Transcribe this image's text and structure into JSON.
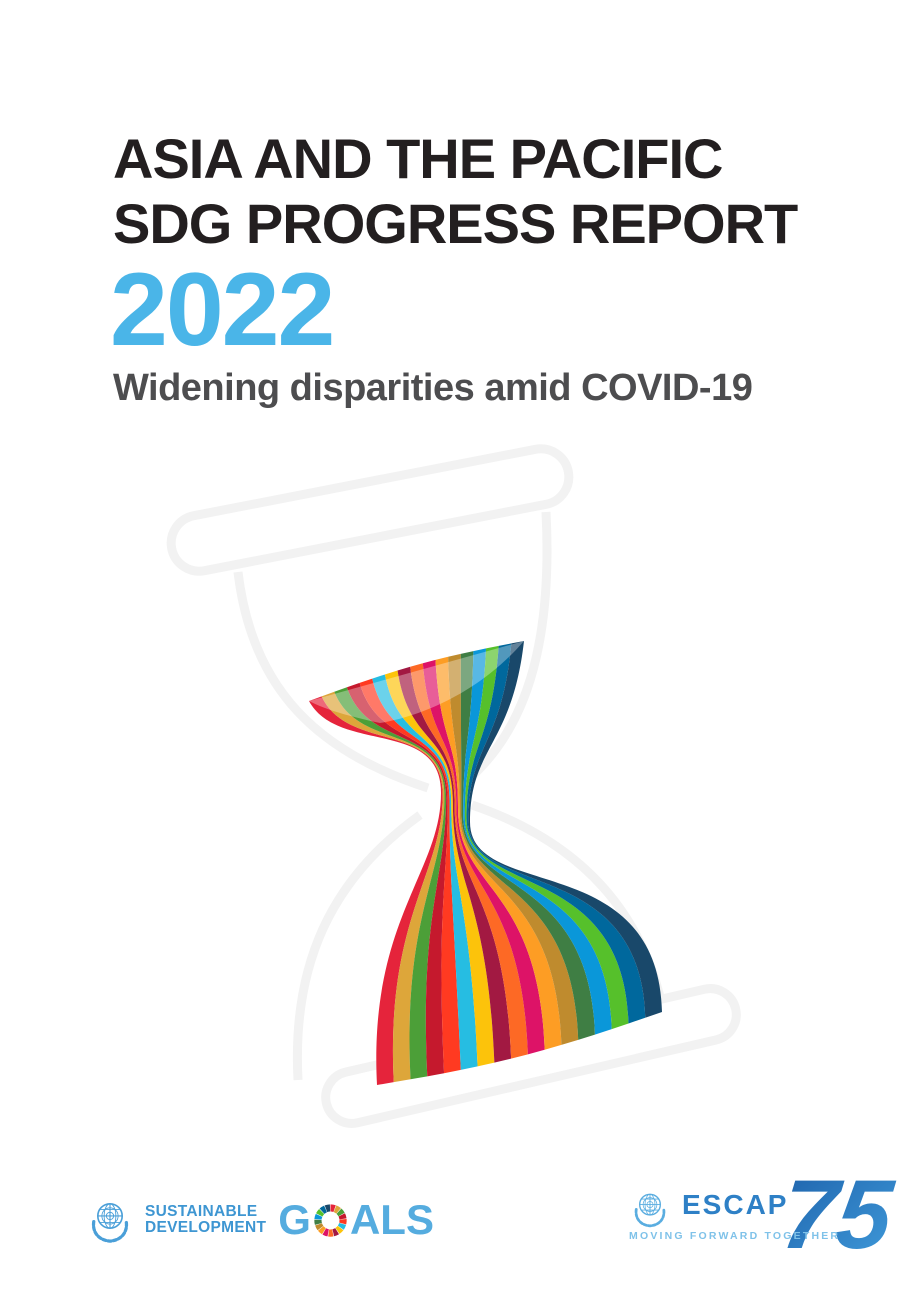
{
  "cover": {
    "title_line1": "ASIA AND THE PACIFIC",
    "title_line2": "SDG PROGRESS REPORT",
    "year": "2022",
    "subtitle": "Widening disparities amid COVID-19",
    "colors": {
      "title": "#231F20",
      "year": "#4AB5E8",
      "subtitle": "#4D4D4F"
    }
  },
  "artwork": {
    "description": "Multicoloured SDG ribbon vortex twisting inside a faint hourglass outline",
    "outline_color": "#F2F2F2",
    "stripe_colors": [
      "#E5243B",
      "#DDA63A",
      "#4C9F38",
      "#C5192D",
      "#FF3A21",
      "#26BDE2",
      "#FCC30B",
      "#A21942",
      "#FD6925",
      "#DD1367",
      "#FD9D24",
      "#BF8B2E",
      "#3F7E44",
      "#0A97D9",
      "#56C02B",
      "#00689D",
      "#19486A"
    ]
  },
  "footer": {
    "sdg_logo": {
      "line1": "SUSTAINABLE",
      "line2": "DEVELOPMENT",
      "goals_prefix": "G",
      "goals_suffix": "ALS",
      "text_color": "#3E96D2",
      "goals_color": "#55ACDF",
      "emblem_color": "#4A9FD8",
      "wheel_colors": [
        "#E5243B",
        "#DDA63A",
        "#4C9F38",
        "#C5192D",
        "#FF3A21",
        "#26BDE2",
        "#FCC30B",
        "#A21942",
        "#FD6925",
        "#DD1367",
        "#FD9D24",
        "#BF8B2E",
        "#3F7E44",
        "#0A97D9",
        "#56C02B",
        "#00689D",
        "#19486A"
      ]
    },
    "escap_logo": {
      "name": "ESCAP",
      "anniversary": "75",
      "tagline": "MOVING FORWARD TOGETHER",
      "name_color": "#2E80C6",
      "tagline_color": "#7FC2E9",
      "emblem_color": "#5AADE0",
      "gradient": [
        "#1E62AB",
        "#3F9ADA"
      ]
    }
  }
}
